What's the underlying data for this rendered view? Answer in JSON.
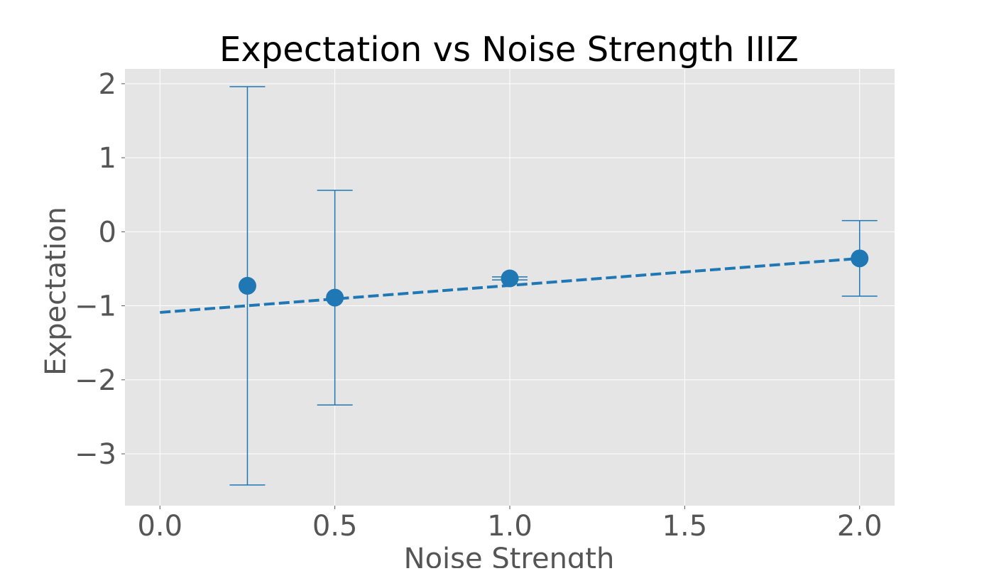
{
  "chart_data": {
    "type": "scatter",
    "title": "Expectation vs Noise Strength IIIZ",
    "xlabel": "Noise Strength",
    "ylabel": "Expectation",
    "xlim": [
      -0.1,
      2.1
    ],
    "ylim": [
      -3.7,
      2.2
    ],
    "x_ticks": [
      0.0,
      0.5,
      1.0,
      1.5,
      2.0
    ],
    "x_tick_labels": [
      "0.0",
      "0.5",
      "1.0",
      "1.5",
      "2.0"
    ],
    "y_ticks": [
      2,
      1,
      0,
      -1,
      -2,
      -3
    ],
    "y_tick_labels": [
      "2",
      "1",
      "0",
      "−1",
      "−2",
      "−3"
    ],
    "grid": true,
    "style": "ggplot",
    "colors": {
      "background": "#e5e5e5",
      "grid": "#ffffff",
      "series": "#1f77b4"
    },
    "series": [
      {
        "kind": "points_with_error_bars",
        "x": [
          0.25,
          0.5,
          1.0,
          2.0
        ],
        "y": [
          -0.73,
          -0.89,
          -0.63,
          -0.36
        ],
        "yerr": [
          2.69,
          1.45,
          0.02,
          0.51
        ]
      },
      {
        "kind": "dashed_fit_line",
        "x": [
          0.0,
          2.0
        ],
        "y": [
          -1.09,
          -0.36
        ]
      }
    ]
  }
}
